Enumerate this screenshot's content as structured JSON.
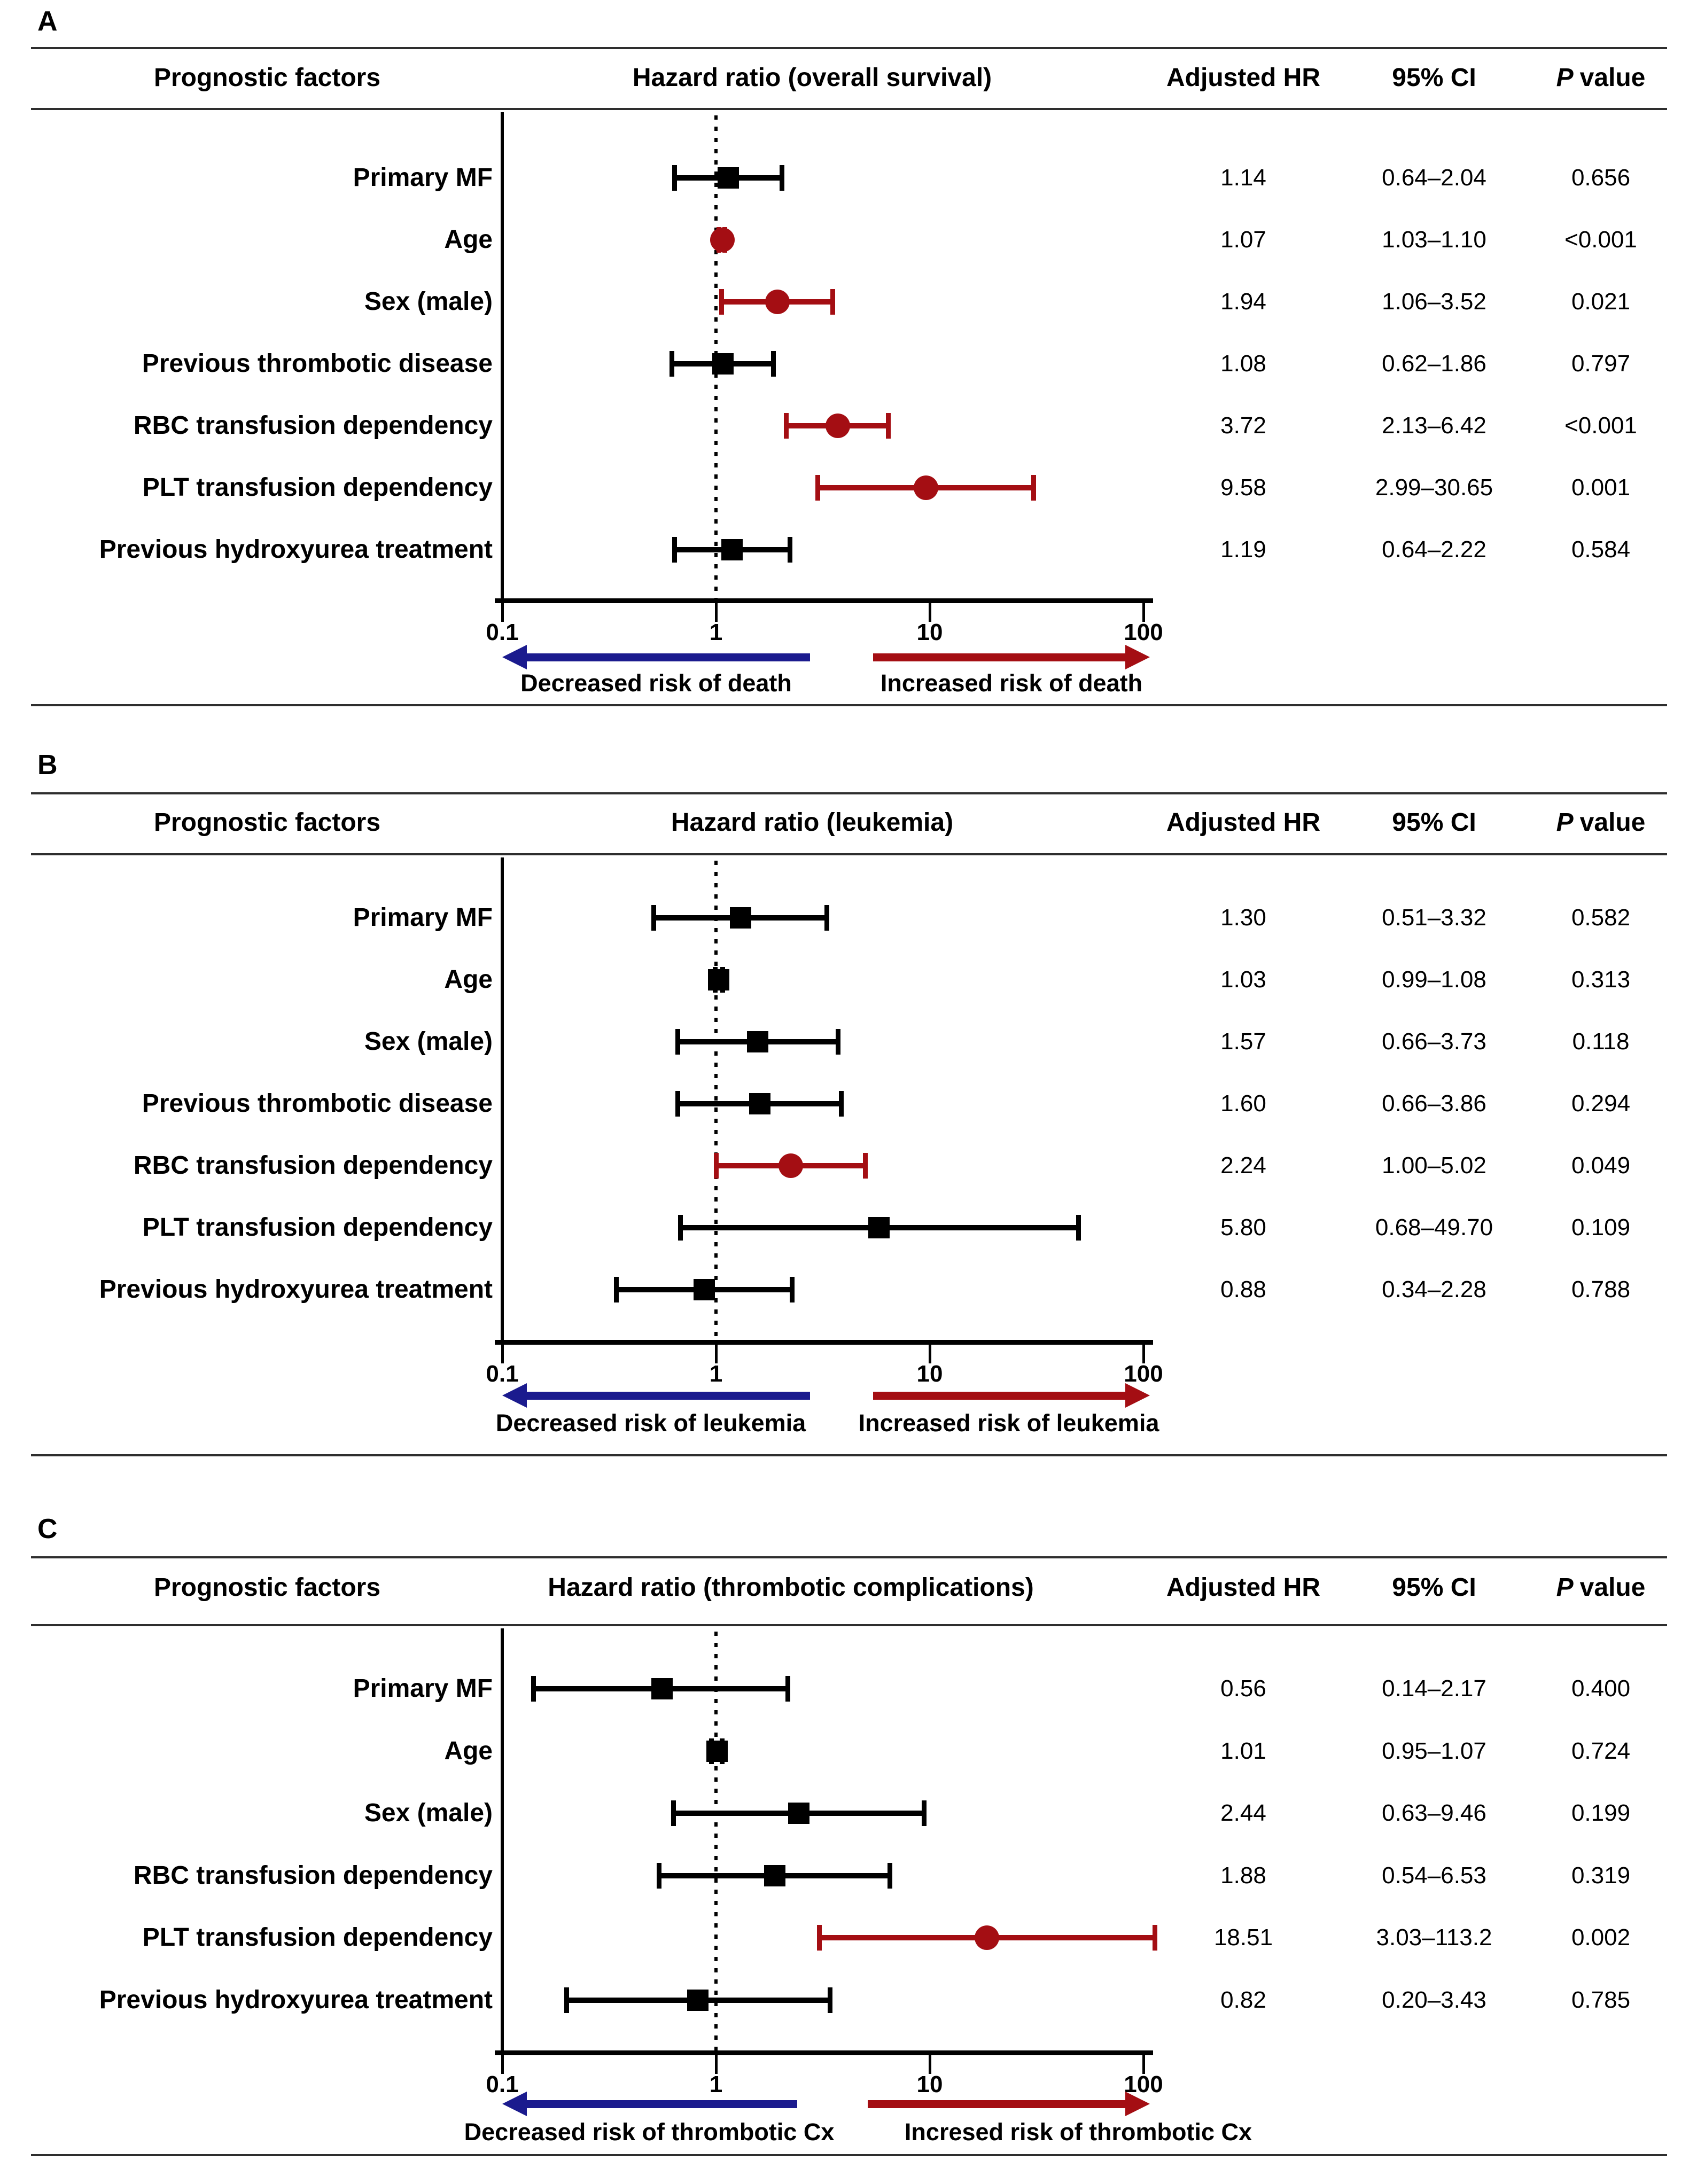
{
  "columns": {
    "factors": "Prognostic factors",
    "adjusted_hr": "Adjusted HR",
    "ci": "95% CI",
    "p_prefix": "P",
    "p_suffix": "value"
  },
  "colors": {
    "significant": "#a40e13",
    "nonsignificant": "#000000",
    "decrease_arrow": "#1b1b8e",
    "increase_arrow": "#a40e13"
  },
  "chart_data": [
    {
      "type": "scatter",
      "subtype": "forest-plot",
      "panel": "A",
      "title": "Hazard ratio (overall survival)",
      "x_axis": {
        "scale": "log10",
        "range": [
          0.1,
          100
        ],
        "ticks": [
          0.1,
          1,
          10,
          100
        ],
        "tick_labels": [
          "0.1",
          "1",
          "10",
          "100"
        ],
        "reference_line": 1
      },
      "arrows": {
        "left_label": "Decreased risk of death",
        "right_label": "Increased risk of death"
      },
      "rows": [
        {
          "factor": "Primary MF",
          "adjusted_hr": 1.14,
          "ci_low": 0.64,
          "ci_high": 2.04,
          "hr_text": "1.14",
          "ci_text": "0.64–2.04",
          "p_text": "0.656",
          "significant": false,
          "marker": "square"
        },
        {
          "factor": "Age",
          "adjusted_hr": 1.07,
          "ci_low": 1.03,
          "ci_high": 1.1,
          "hr_text": "1.07",
          "ci_text": "1.03–1.10",
          "p_text": "<0.001",
          "significant": true,
          "marker": "circle"
        },
        {
          "factor": "Sex (male)",
          "adjusted_hr": 1.94,
          "ci_low": 1.06,
          "ci_high": 3.52,
          "hr_text": "1.94",
          "ci_text": "1.06–3.52",
          "p_text": "0.021",
          "significant": true,
          "marker": "circle"
        },
        {
          "factor": "Previous thrombotic disease",
          "adjusted_hr": 1.08,
          "ci_low": 0.62,
          "ci_high": 1.86,
          "hr_text": "1.08",
          "ci_text": "0.62–1.86",
          "p_text": "0.797",
          "significant": false,
          "marker": "square"
        },
        {
          "factor": "RBC transfusion dependency",
          "adjusted_hr": 3.72,
          "ci_low": 2.13,
          "ci_high": 6.42,
          "hr_text": "3.72",
          "ci_text": "2.13–6.42",
          "p_text": "<0.001",
          "significant": true,
          "marker": "circle"
        },
        {
          "factor": "PLT transfusion dependency",
          "adjusted_hr": 9.58,
          "ci_low": 2.99,
          "ci_high": 30.65,
          "hr_text": "9.58",
          "ci_text": "2.99–30.65",
          "p_text": "0.001",
          "significant": true,
          "marker": "circle"
        },
        {
          "factor": "Previous hydroxyurea treatment",
          "adjusted_hr": 1.19,
          "ci_low": 0.64,
          "ci_high": 2.22,
          "hr_text": "1.19",
          "ci_text": "0.64–2.22",
          "p_text": "0.584",
          "significant": false,
          "marker": "square"
        }
      ]
    },
    {
      "type": "scatter",
      "subtype": "forest-plot",
      "panel": "B",
      "title": "Hazard ratio (leukemia)",
      "x_axis": {
        "scale": "log10",
        "range": [
          0.1,
          100
        ],
        "ticks": [
          0.1,
          1,
          10,
          100
        ],
        "tick_labels": [
          "0.1",
          "1",
          "10",
          "100"
        ],
        "reference_line": 1
      },
      "arrows": {
        "left_label": "Decreased risk of leukemia",
        "right_label": "Increased risk of leukemia"
      },
      "rows": [
        {
          "factor": "Primary MF",
          "adjusted_hr": 1.3,
          "ci_low": 0.51,
          "ci_high": 3.32,
          "hr_text": "1.30",
          "ci_text": "0.51–3.32",
          "p_text": "0.582",
          "significant": false,
          "marker": "square"
        },
        {
          "factor": "Age",
          "adjusted_hr": 1.03,
          "ci_low": 0.99,
          "ci_high": 1.08,
          "hr_text": "1.03",
          "ci_text": "0.99–1.08",
          "p_text": "0.313",
          "significant": false,
          "marker": "square"
        },
        {
          "factor": "Sex (male)",
          "adjusted_hr": 1.57,
          "ci_low": 0.66,
          "ci_high": 3.73,
          "hr_text": "1.57",
          "ci_text": "0.66–3.73",
          "p_text": "0.118",
          "significant": false,
          "marker": "square"
        },
        {
          "factor": "Previous thrombotic disease",
          "adjusted_hr": 1.6,
          "ci_low": 0.66,
          "ci_high": 3.86,
          "hr_text": "1.60",
          "ci_text": "0.66–3.86",
          "p_text": "0.294",
          "significant": false,
          "marker": "square"
        },
        {
          "factor": "RBC transfusion dependency",
          "adjusted_hr": 2.24,
          "ci_low": 1.0,
          "ci_high": 5.02,
          "hr_text": "2.24",
          "ci_text": "1.00–5.02",
          "p_text": "0.049",
          "significant": true,
          "marker": "circle"
        },
        {
          "factor": "PLT transfusion dependency",
          "adjusted_hr": 5.8,
          "ci_low": 0.68,
          "ci_high": 49.7,
          "hr_text": "5.80",
          "ci_text": "0.68–49.70",
          "p_text": "0.109",
          "significant": false,
          "marker": "square"
        },
        {
          "factor": "Previous hydroxyurea treatment",
          "adjusted_hr": 0.88,
          "ci_low": 0.34,
          "ci_high": 2.28,
          "hr_text": "0.88",
          "ci_text": "0.34–2.28",
          "p_text": "0.788",
          "significant": false,
          "marker": "square"
        }
      ]
    },
    {
      "type": "scatter",
      "subtype": "forest-plot",
      "panel": "C",
      "title": "Hazard ratio (thrombotic complications)",
      "x_axis": {
        "scale": "log10",
        "range": [
          0.1,
          100
        ],
        "ticks": [
          0.1,
          1,
          10,
          100
        ],
        "tick_labels": [
          "0.1",
          "1",
          "10",
          "100"
        ],
        "reference_line": 1
      },
      "arrows": {
        "left_label": "Decreased risk of thrombotic Cx",
        "right_label": "Incresed risk of thrombotic Cx"
      },
      "rows": [
        {
          "factor": "Primary MF",
          "adjusted_hr": 0.56,
          "ci_low": 0.14,
          "ci_high": 2.17,
          "hr_text": "0.56",
          "ci_text": "0.14–2.17",
          "p_text": "0.400",
          "significant": false,
          "marker": "square"
        },
        {
          "factor": "Age",
          "adjusted_hr": 1.01,
          "ci_low": 0.95,
          "ci_high": 1.07,
          "hr_text": "1.01",
          "ci_text": "0.95–1.07",
          "p_text": "0.724",
          "significant": false,
          "marker": "square"
        },
        {
          "factor": "Sex (male)",
          "adjusted_hr": 2.44,
          "ci_low": 0.63,
          "ci_high": 9.46,
          "hr_text": "2.44",
          "ci_text": "0.63–9.46",
          "p_text": "0.199",
          "significant": false,
          "marker": "square"
        },
        {
          "factor": "RBC transfusion dependency",
          "adjusted_hr": 1.88,
          "ci_low": 0.54,
          "ci_high": 6.53,
          "hr_text": "1.88",
          "ci_text": "0.54–6.53",
          "p_text": "0.319",
          "significant": false,
          "marker": "square"
        },
        {
          "factor": "PLT transfusion dependency",
          "adjusted_hr": 18.51,
          "ci_low": 3.03,
          "ci_high": 113.2,
          "hr_text": "18.51",
          "ci_text": "3.03–113.2",
          "p_text": "0.002",
          "significant": true,
          "marker": "circle"
        },
        {
          "factor": "Previous hydroxyurea treatment",
          "adjusted_hr": 0.82,
          "ci_low": 0.2,
          "ci_high": 3.43,
          "hr_text": "0.82",
          "ci_text": "0.20–3.43",
          "p_text": "0.785",
          "significant": false,
          "marker": "square"
        }
      ]
    }
  ]
}
